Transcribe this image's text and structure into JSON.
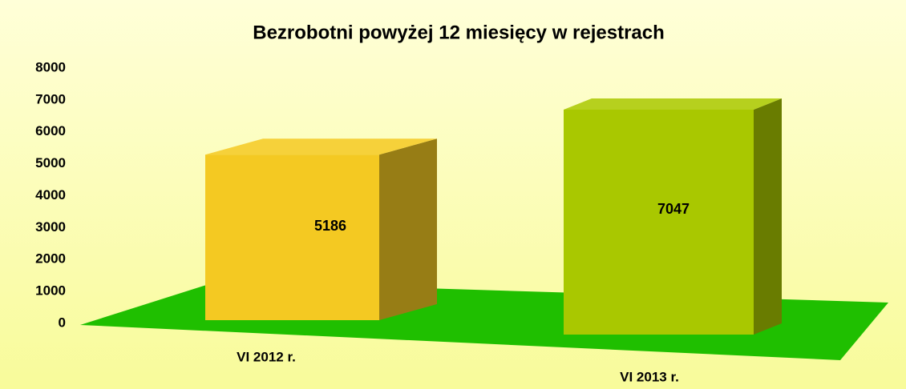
{
  "chart_data": {
    "type": "bar3d",
    "title": "Bezrobotni powyżej 12 miesięcy w rejestrach",
    "categories": [
      "VI 2012 r.",
      "VI 2013 r."
    ],
    "values": [
      5186,
      7047
    ],
    "colors": [
      "#f4c922",
      "#a9c800"
    ],
    "floor_color": "#1fbf00",
    "ylim": [
      0,
      8000
    ],
    "yticks": [
      0,
      1000,
      2000,
      3000,
      4000,
      5000,
      6000,
      7000,
      8000
    ],
    "grid": false
  }
}
